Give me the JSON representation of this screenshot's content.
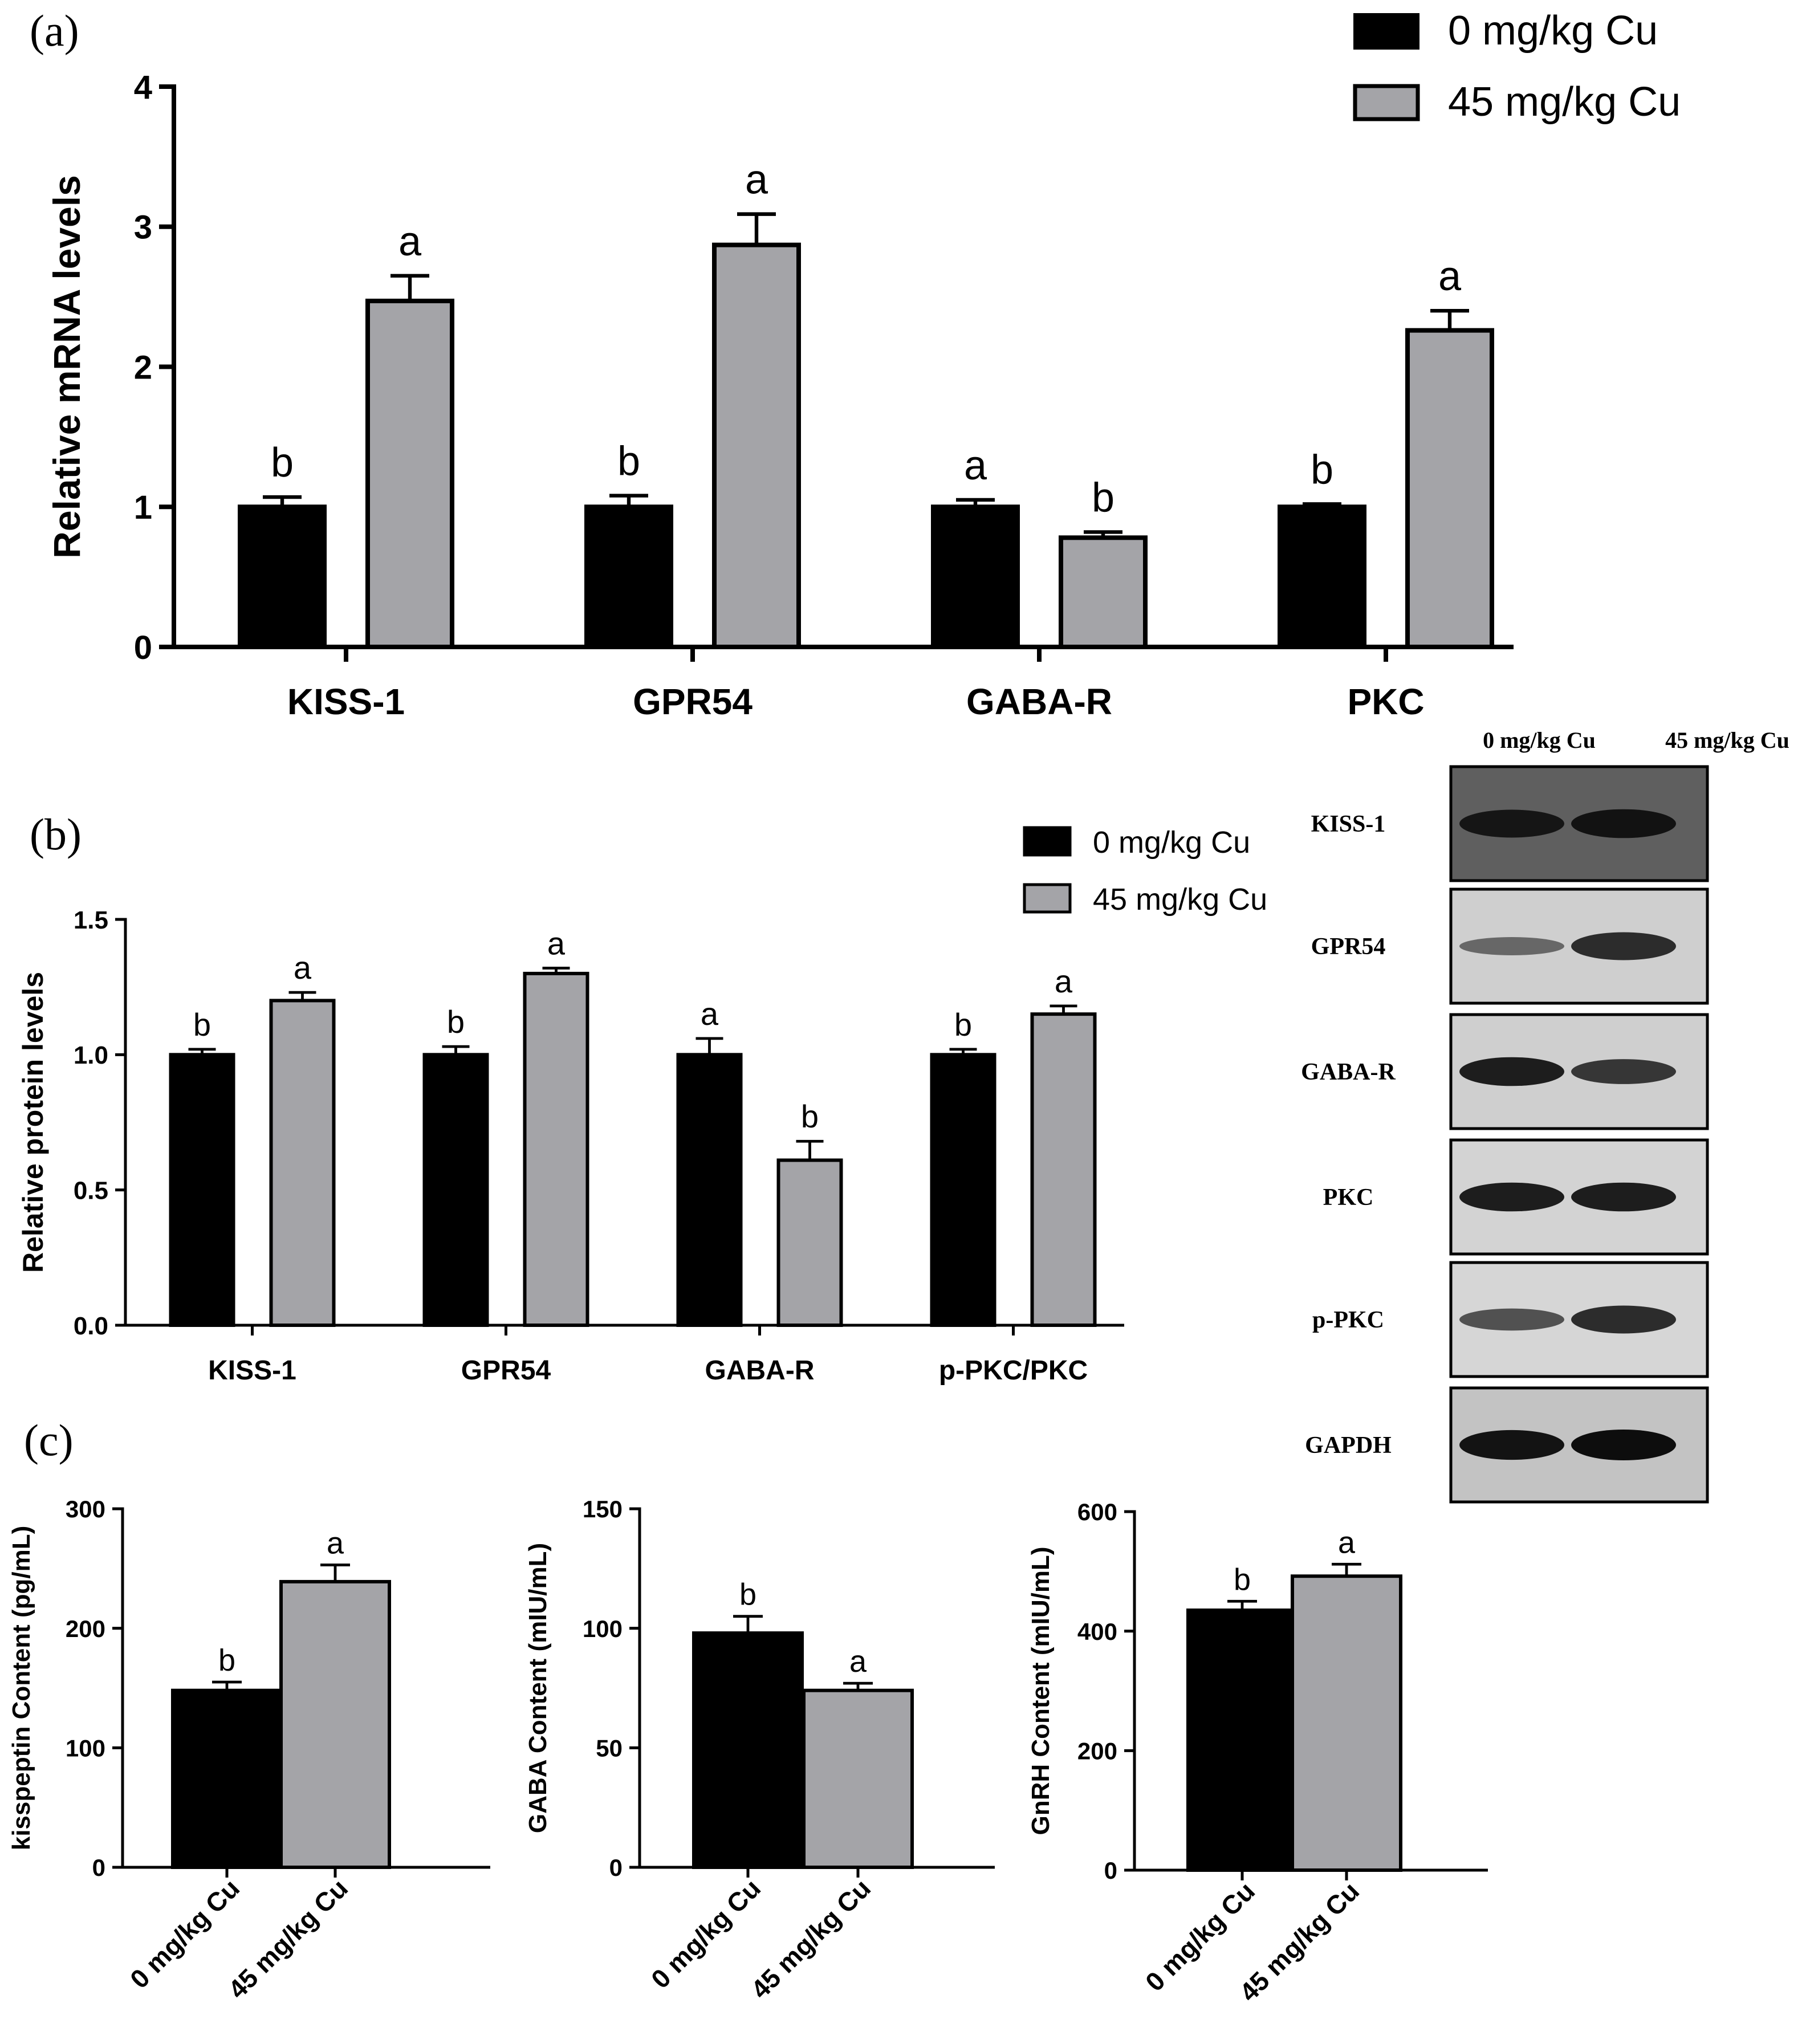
{
  "colors": {
    "control": "#000000",
    "treated": "#a4a4a8",
    "axis": "#000000",
    "blot_bg": "#c8c8c8",
    "blot_band": "#151515"
  },
  "panels": {
    "a": {
      "label": "(a)"
    },
    "b": {
      "label": "(b)"
    },
    "c": {
      "label": "(c)"
    }
  },
  "legend": {
    "control": "0 mg/kg Cu",
    "treated": "45 mg/kg Cu"
  },
  "chart_data": [
    {
      "id": "a",
      "type": "bar",
      "title": "",
      "xlabel": "",
      "ylabel": "Relative mRNA levels",
      "categories": [
        "KISS-1",
        "GPR54",
        "GABA-R",
        "PKC"
      ],
      "series": [
        {
          "name": "0 mg/kg Cu",
          "values": [
            1.0,
            1.0,
            1.0,
            1.0
          ],
          "errors": [
            0.07,
            0.08,
            0.05,
            0.02
          ],
          "letters": [
            "b",
            "b",
            "a",
            "b"
          ]
        },
        {
          "name": "45 mg/kg Cu",
          "values": [
            2.47,
            2.87,
            0.78,
            2.26
          ],
          "errors": [
            0.18,
            0.22,
            0.04,
            0.14
          ],
          "letters": [
            "a",
            "a",
            "b",
            "a"
          ]
        }
      ],
      "ylim": [
        0,
        4
      ],
      "yticks": [
        "0",
        "1",
        "2",
        "3",
        "4"
      ],
      "grid": false,
      "legend_position": "top-right"
    },
    {
      "id": "b",
      "type": "bar",
      "title": "",
      "xlabel": "",
      "ylabel": "Relative protein levels",
      "categories": [
        "KISS-1",
        "GPR54",
        "GABA-R",
        "p-PKC/PKC"
      ],
      "series": [
        {
          "name": "0 mg/kg Cu",
          "values": [
            1.0,
            1.0,
            1.0,
            1.0
          ],
          "errors": [
            0.02,
            0.03,
            0.06,
            0.02
          ],
          "letters": [
            "b",
            "b",
            "a",
            "b"
          ]
        },
        {
          "name": "45 mg/kg Cu",
          "values": [
            1.2,
            1.3,
            0.61,
            1.15
          ],
          "errors": [
            0.03,
            0.02,
            0.07,
            0.03
          ],
          "letters": [
            "a",
            "a",
            "b",
            "a"
          ]
        }
      ],
      "ylim": [
        0,
        1.5
      ],
      "yticks": [
        "0.0",
        "0.5",
        "1.0",
        "1.5"
      ],
      "grid": false,
      "legend_position": "top-right"
    },
    {
      "id": "c1",
      "type": "bar",
      "title": "",
      "xlabel": "",
      "ylabel": "kisspeptin Content (pg/mL)",
      "categories": [
        "0 mg/kg Cu",
        "45 mg/kg Cu"
      ],
      "values": [
        148,
        239
      ],
      "errors": [
        7,
        14
      ],
      "letters": [
        "b",
        "a"
      ],
      "ylim": [
        0,
        300
      ],
      "yticks": [
        "0",
        "100",
        "200",
        "300"
      ],
      "grid": false
    },
    {
      "id": "c2",
      "type": "bar",
      "title": "",
      "xlabel": "",
      "ylabel": "GABA Content (mIU/mL)",
      "categories": [
        "0 mg/kg Cu",
        "45 mg/kg Cu"
      ],
      "values": [
        98,
        74
      ],
      "errors": [
        7,
        3
      ],
      "letters": [
        "b",
        "a"
      ],
      "ylim": [
        0,
        150
      ],
      "yticks": [
        "0",
        "50",
        "100",
        "150"
      ],
      "grid": false
    },
    {
      "id": "c3",
      "type": "bar",
      "title": "",
      "xlabel": "",
      "ylabel": "GnRH Content (mIU/mL)",
      "categories": [
        "0 mg/kg Cu",
        "45 mg/kg Cu"
      ],
      "values": [
        435,
        492
      ],
      "errors": [
        15,
        20
      ],
      "letters": [
        "b",
        "a"
      ],
      "ylim": [
        0,
        600
      ],
      "yticks": [
        "0",
        "200",
        "400",
        "600"
      ],
      "grid": false
    }
  ],
  "western_blot": {
    "columns": [
      "0 mg/kg Cu",
      "45 mg/kg Cu"
    ],
    "rows": [
      {
        "label": "KISS-1",
        "lanes": [
          0.85,
          0.9
        ],
        "bg": "#5f5f5f",
        "band_color": "#0d0d0d"
      },
      {
        "label": "GPR54",
        "lanes": [
          0.35,
          0.85
        ],
        "bg": "#cfcfcf",
        "band_color": "#1a1a1a"
      },
      {
        "label": "GABA-R",
        "lanes": [
          0.9,
          0.7
        ],
        "bg": "#cfcfcf",
        "band_color": "#101010"
      },
      {
        "label": "PKC",
        "lanes": [
          0.9,
          0.9
        ],
        "bg": "#d3d3d3",
        "band_color": "#101010"
      },
      {
        "label": "p-PKC",
        "lanes": [
          0.55,
          0.85
        ],
        "bg": "#d6d6d6",
        "band_color": "#1a1a1a"
      },
      {
        "label": "GAPDH",
        "lanes": [
          0.95,
          1.0
        ],
        "bg": "#c3c3c3",
        "band_color": "#0d0d0d"
      }
    ]
  }
}
